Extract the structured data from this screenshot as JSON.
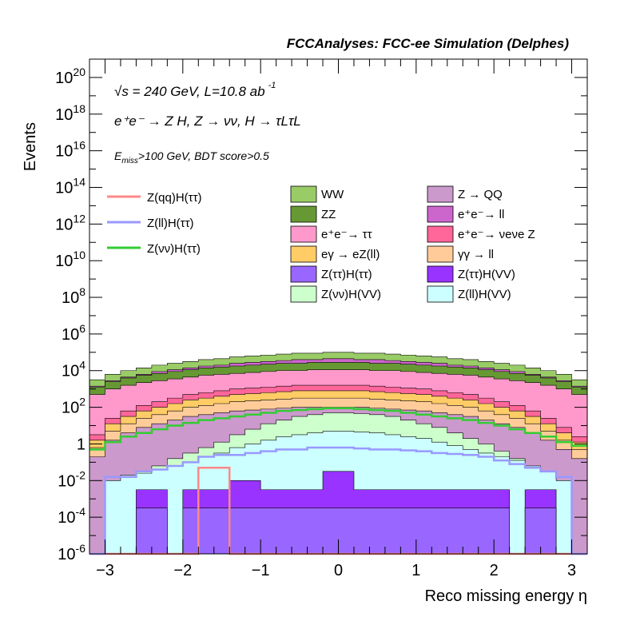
{
  "chart_data": {
    "type": "area",
    "title": "FCCAnalyses: FCC-ee Simulation (Delphes)",
    "xlabel": "Reco missing energy η",
    "ylabel": "Events",
    "xlim": [
      -3.2,
      3.2
    ],
    "ylim_log10": [
      -6,
      21
    ],
    "y_scale": "log",
    "x_ticks": [
      "−3",
      "−2",
      "−1",
      "0",
      "1",
      "2",
      "3"
    ],
    "y_ticks": [
      {
        "base": "10",
        "exp": "20",
        "v": 20
      },
      {
        "base": "10",
        "exp": "18",
        "v": 18
      },
      {
        "base": "10",
        "exp": "16",
        "v": 16
      },
      {
        "base": "10",
        "exp": "14",
        "v": 14
      },
      {
        "base": "10",
        "exp": "12",
        "v": 12
      },
      {
        "base": "10",
        "exp": "10",
        "v": 10
      },
      {
        "base": "10",
        "exp": "8",
        "v": 8
      },
      {
        "base": "10",
        "exp": "6",
        "v": 6
      },
      {
        "base": "10",
        "exp": "4",
        "v": 4
      },
      {
        "base": "10",
        "exp": "2",
        "v": 2
      },
      {
        "base": "1",
        "exp": "",
        "v": 0
      },
      {
        "base": "10",
        "exp": "-2",
        "v": -2
      },
      {
        "base": "10",
        "exp": "-4",
        "v": -4
      },
      {
        "base": "10",
        "exp": "-6",
        "v": -6
      }
    ],
    "bin_edges_start": -3.2,
    "bin_width": 0.2,
    "stack_cumulative_log10": {
      "ZH_ll_VV": [
        -6,
        -2,
        -1.7,
        -1.6,
        -1.4,
        -1.2,
        -1,
        -0.7,
        -0.5,
        -0.2,
        0,
        0.2,
        0.4,
        0.5,
        0.6,
        0.7,
        0.7,
        0.65,
        0.6,
        0.5,
        0.4,
        0.3,
        0.1,
        -0.1,
        -0.3,
        -0.5,
        -0.7,
        -0.9,
        -1.2,
        -1.5,
        -2,
        -6
      ],
      "ZH_vv_VV": [
        -6,
        -6,
        -2,
        -1.5,
        -1.2,
        -0.8,
        -0.5,
        -0.2,
        0.1,
        0.5,
        0.8,
        1.1,
        1.3,
        1.5,
        1.6,
        1.7,
        1.7,
        1.65,
        1.6,
        1.5,
        1.3,
        1.1,
        0.9,
        0.6,
        0.3,
        0,
        -0.4,
        -0.8,
        -1.3,
        -2,
        -6,
        -6
      ],
      "total_mid": [
        -0.2,
        0.7,
        1.1,
        1.4,
        1.6,
        1.8,
        2.0,
        2.1,
        2.2,
        2.3,
        2.35,
        2.4,
        2.45,
        2.5,
        2.5,
        2.5,
        2.5,
        2.5,
        2.45,
        2.4,
        2.35,
        2.3,
        2.2,
        2.1,
        2.0,
        1.8,
        1.6,
        1.4,
        1.1,
        0.7,
        0.2,
        -0.3
      ],
      "ee_tautau": [
        3.1,
        3.4,
        3.6,
        3.75,
        3.85,
        3.95,
        4.05,
        4.15,
        4.2,
        4.25,
        4.3,
        4.35,
        4.4,
        4.4,
        4.45,
        4.45,
        4.45,
        4.45,
        4.4,
        4.4,
        4.35,
        4.3,
        4.25,
        4.2,
        4.15,
        4.05,
        3.95,
        3.85,
        3.75,
        3.6,
        3.4,
        3.1
      ],
      "WW": [
        3.5,
        3.8,
        4.0,
        4.15,
        4.3,
        4.4,
        4.5,
        4.6,
        4.65,
        4.75,
        4.8,
        4.85,
        4.9,
        4.95,
        4.95,
        5.0,
        5.0,
        4.95,
        4.95,
        4.9,
        4.85,
        4.8,
        4.75,
        4.65,
        4.6,
        4.5,
        4.4,
        4.3,
        4.15,
        4.0,
        3.8,
        3.5
      ]
    },
    "line_series": [
      {
        "name": "Z(qq)H(ττ)",
        "color": "#ff8888",
        "bins_log10": [
          -6,
          -6,
          -6,
          -6,
          -6,
          -6,
          -6,
          -1.3,
          -1.3,
          -6,
          -6,
          -6,
          -6,
          -6,
          -6,
          -6,
          -6,
          -6,
          -6,
          -6,
          -6,
          -6,
          -6,
          -6,
          -6,
          -6,
          -6,
          -6,
          -6,
          -6,
          -6,
          -6
        ]
      },
      {
        "name": "Z(ll)H(ττ)",
        "color": "#9999ff",
        "bins_log10": [
          -6,
          -1.8,
          -1.8,
          -1.5,
          -1.4,
          -1.2,
          -1.0,
          -0.7,
          -0.6,
          -0.6,
          -0.5,
          -0.4,
          -0.3,
          -0.3,
          -0.2,
          -0.2,
          -0.2,
          -0.25,
          -0.3,
          -0.3,
          -0.35,
          -0.4,
          -0.5,
          -0.55,
          -0.6,
          -0.7,
          -0.9,
          -1.1,
          -1.3,
          -1.5,
          -1.8,
          -6
        ]
      },
      {
        "name": "Z(νν)H(ττ)",
        "color": "#33cc33",
        "bins_log10": [
          -0.3,
          0.1,
          0.4,
          0.6,
          0.8,
          1.0,
          1.15,
          1.3,
          1.4,
          1.5,
          1.6,
          1.7,
          1.8,
          1.85,
          1.9,
          1.95,
          1.95,
          1.9,
          1.85,
          1.8,
          1.7,
          1.6,
          1.5,
          1.4,
          1.3,
          1.15,
          1.0,
          0.8,
          0.6,
          0.4,
          0.1,
          -0.1
        ]
      }
    ]
  },
  "legend": {
    "lines": [
      {
        "label": "Z(qq)H(ττ)",
        "color": "#ff8888"
      },
      {
        "label": "Z(ll)H(ττ)",
        "color": "#9999ff"
      },
      {
        "label": "Z(νν)H(ττ)",
        "color": "#33cc33"
      }
    ],
    "col1": [
      {
        "label": "WW",
        "color": "#99cc66"
      },
      {
        "label": "ZZ",
        "color": "#669933"
      },
      {
        "label": "e⁺e⁻→ ττ",
        "color": "#ff99cc"
      },
      {
        "label": "eγ → eZ(ll)",
        "color": "#ffcc66"
      },
      {
        "label": "Z(ττ)H(ττ)",
        "color": "#9966ff"
      },
      {
        "label": "Z(νν)H(VV)",
        "color": "#ccffcc"
      }
    ],
    "col2": [
      {
        "label": "Z → QQ",
        "color": "#cc99cc"
      },
      {
        "label": "e⁺e⁻→ ll",
        "color": "#cc66cc"
      },
      {
        "label": "e⁺e⁻→ νeνe Z",
        "color": "#ff6699"
      },
      {
        "label": "γγ → ll",
        "color": "#ffcc99"
      },
      {
        "label": "Z(ττ)H(VV)",
        "color": "#9933ff"
      },
      {
        "label": "Z(ll)H(VV)",
        "color": "#ccffff"
      }
    ]
  },
  "annotations": {
    "sqrt_s": "√s = 240 GeV, L=10.8 ab",
    "lumi_exp": "-1",
    "process": "e⁺e⁻ → Z H, Z → νν, H → τLτL",
    "cut_prefix": "E",
    "cut_sub": "miss",
    "cut_text": ">100 GeV, BDT score>0.5"
  }
}
